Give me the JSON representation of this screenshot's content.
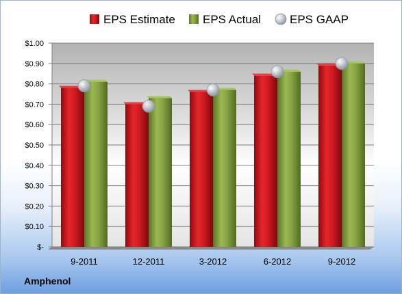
{
  "company": "Amphenol",
  "colors": {
    "estimate": "#c8151b",
    "actual": "#7f9b3a",
    "gaap": "#b5bcc6"
  },
  "chart_data": {
    "type": "bar",
    "categories": [
      "9-2011",
      "12-2011",
      "3-2012",
      "6-2012",
      "9-2012"
    ],
    "series": [
      {
        "name": "EPS Estimate",
        "values": [
          0.78,
          0.7,
          0.76,
          0.84,
          0.89
        ]
      },
      {
        "name": "EPS Actual",
        "values": [
          0.81,
          0.73,
          0.77,
          0.86,
          0.9
        ]
      },
      {
        "name": "EPS GAAP",
        "marker": "circle",
        "values": [
          0.79,
          0.69,
          0.77,
          0.86,
          0.9
        ]
      }
    ],
    "yticks": [
      "$-",
      "$0.10",
      "$0.20",
      "$0.30",
      "$0.40",
      "$0.50",
      "$0.60",
      "$0.70",
      "$0.80",
      "$0.90",
      "$1.00"
    ],
    "ylim": [
      0,
      1.0
    ],
    "grid": true,
    "legend": "top"
  }
}
